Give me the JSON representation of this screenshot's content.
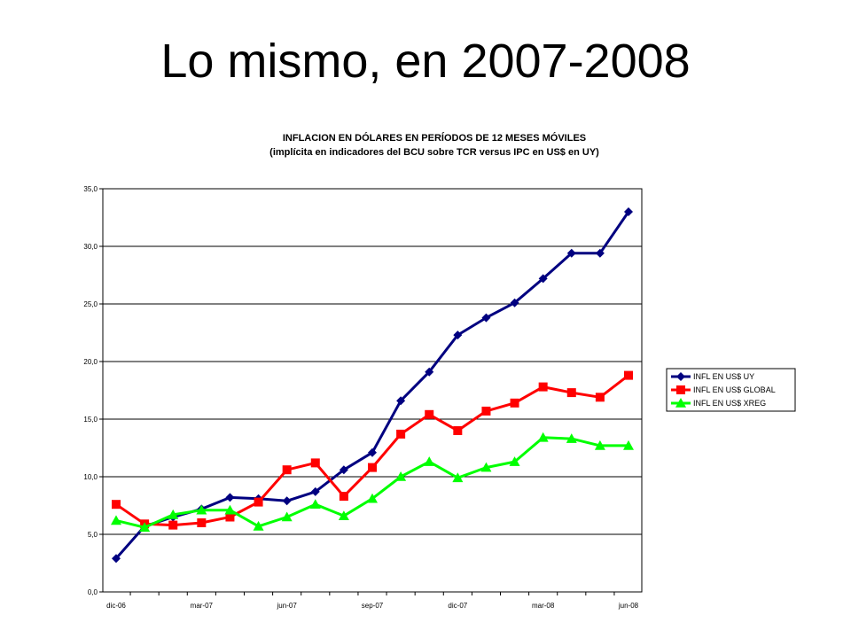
{
  "slide": {
    "title": "Lo mismo, en 2007-2008"
  },
  "chart_data": {
    "type": "line",
    "title": "INFLACION EN DÓLARES EN PERÍODOS DE 12 MESES MÓVILES",
    "subtitle": "(implícita en indicadores del BCU sobre TCR versus IPC en US$ en UY)",
    "xlabel": "",
    "ylabel": "",
    "ylim": [
      0,
      35
    ],
    "yticks": [
      "0,0",
      "5,0",
      "10,0",
      "15,0",
      "20,0",
      "25,0",
      "30,0",
      "35,0"
    ],
    "xtick_labels": [
      "dic-06",
      "mar-07",
      "jun-07",
      "sep-07",
      "dic-07",
      "mar-08",
      "jun-08"
    ],
    "grid": true,
    "legend_position": "right",
    "x": [
      "dic-06",
      "ene-07",
      "feb-07",
      "mar-07",
      "abr-07",
      "may-07",
      "jun-07",
      "jul-07",
      "ago-07",
      "sep-07",
      "oct-07",
      "nov-07",
      "dic-07",
      "ene-08",
      "feb-08",
      "mar-08",
      "abr-08",
      "may-08",
      "jun-08"
    ],
    "series": [
      {
        "name": "INFL EN US$ UY",
        "color": "#000080",
        "marker": "diamond",
        "values": [
          2.9,
          5.7,
          6.5,
          7.2,
          8.2,
          8.1,
          7.9,
          8.7,
          10.6,
          12.1,
          16.6,
          19.1,
          22.3,
          23.8,
          25.1,
          27.2,
          29.4,
          29.4,
          33.0
        ]
      },
      {
        "name": "INFL EN US$ GLOBAL",
        "color": "#ff0000",
        "marker": "square",
        "values": [
          7.6,
          5.9,
          5.8,
          6.0,
          6.5,
          7.8,
          10.6,
          11.2,
          8.3,
          10.8,
          13.7,
          15.4,
          14.0,
          15.7,
          16.4,
          17.8,
          17.3,
          16.9,
          18.8
        ]
      },
      {
        "name": "INFL EN US$ XREG",
        "color": "#00ff00",
        "marker": "triangle",
        "values": [
          6.2,
          5.6,
          6.7,
          7.1,
          7.1,
          5.7,
          6.5,
          7.6,
          6.6,
          8.1,
          10.0,
          11.3,
          9.9,
          10.8,
          11.3,
          13.4,
          13.3,
          12.7,
          12.7
        ]
      }
    ]
  }
}
